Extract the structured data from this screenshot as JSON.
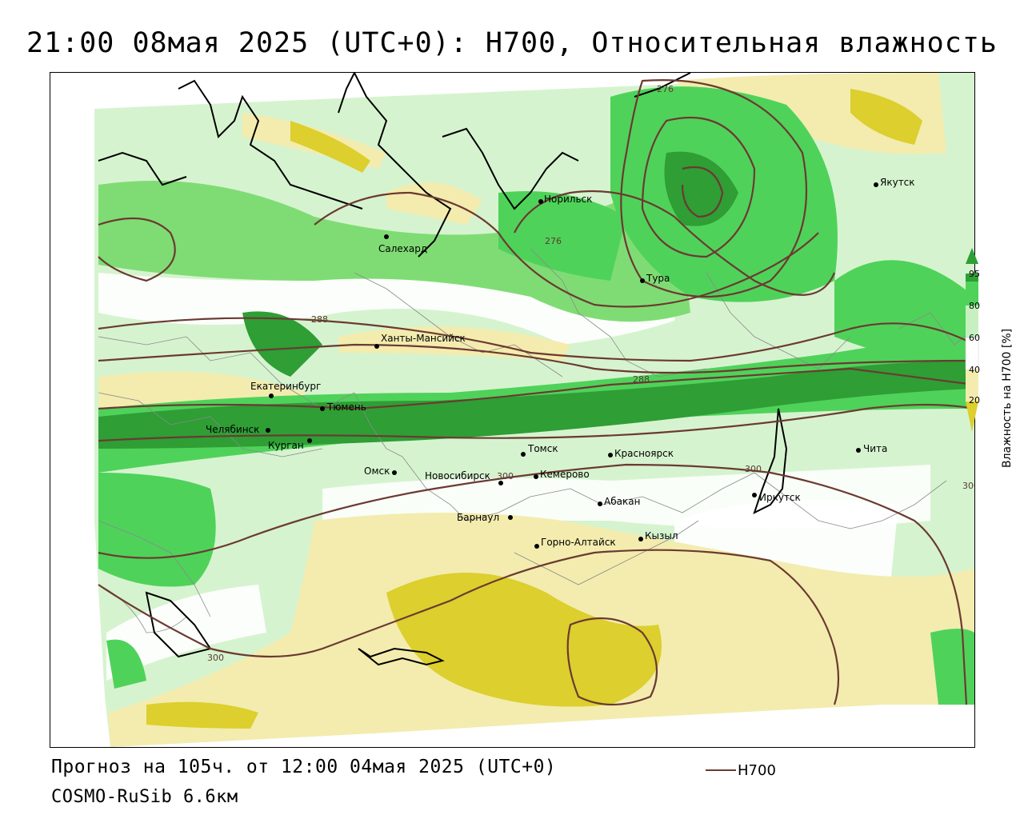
{
  "title": "21:00 08мая 2025 (UTC+0): H700, Относительная влажность",
  "footer": {
    "forecast": "Прогноз на 105ч. от 12:00 04мая 2025 (UTC+0)",
    "model": "COSMO-RuSib 6.6км"
  },
  "legend": {
    "line_label": "H700",
    "line_color": "#6b3a32"
  },
  "colorbar": {
    "title": "Влажность на H700 [%]",
    "ticks": [
      "95",
      "80",
      "60",
      "40",
      "20"
    ],
    "colors": [
      "#2e9e35",
      "#4fd25a",
      "#c6f0c0",
      "#ffffff",
      "#f3ecae",
      "#dccf2e"
    ]
  },
  "cities": [
    {
      "name": "Якутск"
    },
    {
      "name": "Норильск"
    },
    {
      "name": "Салехард"
    },
    {
      "name": "Тура"
    },
    {
      "name": "Ханты-Мансийск"
    },
    {
      "name": "Екатеринбург"
    },
    {
      "name": "Тюмень"
    },
    {
      "name": "Челябинск"
    },
    {
      "name": "Курган"
    },
    {
      "name": "Омск"
    },
    {
      "name": "Новосибирск"
    },
    {
      "name": "Томск"
    },
    {
      "name": "Кемерово"
    },
    {
      "name": "Красноярск"
    },
    {
      "name": "Абакан"
    },
    {
      "name": "Барнаул"
    },
    {
      "name": "Горно-Алтайск"
    },
    {
      "name": "Кызыл"
    },
    {
      "name": "Иркутск"
    },
    {
      "name": "Чита"
    }
  ],
  "isolines": [
    "276",
    "276",
    "288",
    "288",
    "300",
    "300",
    "300",
    "300"
  ]
}
